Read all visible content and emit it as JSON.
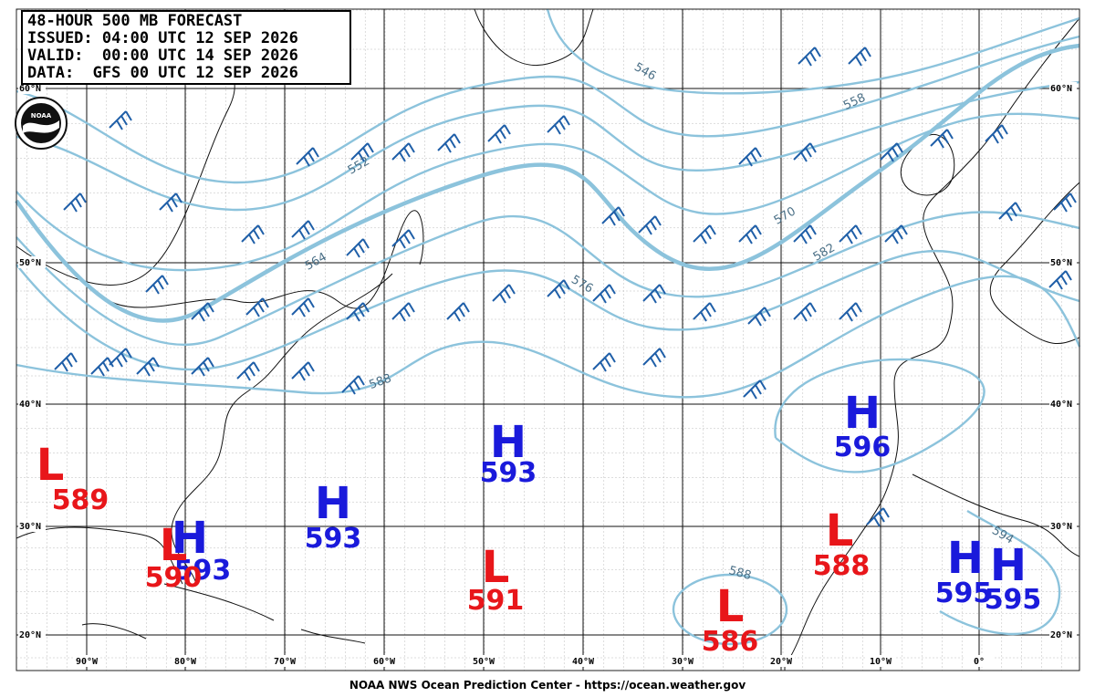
{
  "header": {
    "lines": [
      "48-HOUR 500 MB FORECAST",
      "ISSUED: 04:00 UTC 12 SEP 2026",
      "VALID:  00:00 UTC 14 SEP 2026",
      "DATA:  GFS 00 UTC 12 SEP 2026"
    ]
  },
  "logo": "NOAA",
  "latitude_labels": [
    "60°N",
    "50°N",
    "40°N",
    "30°N",
    "20°N"
  ],
  "longitude_labels": [
    "90°W",
    "80°W",
    "70°W",
    "60°W",
    "50°W",
    "40°W",
    "30°W",
    "20°W",
    "10°W",
    "0°"
  ],
  "contour_labels": [
    "546",
    "558",
    "570",
    "576",
    "564",
    "552",
    "582",
    "588",
    "588",
    "594"
  ],
  "pressure_centers": [
    {
      "symbol": "L",
      "value": "589"
    },
    {
      "symbol": "H",
      "value": "593"
    },
    {
      "symbol": "L",
      "value": "590"
    },
    {
      "symbol": "H",
      "value": "593"
    },
    {
      "symbol": "H",
      "value": "593"
    },
    {
      "symbol": "L",
      "value": "591"
    },
    {
      "symbol": "L",
      "value": "586"
    },
    {
      "symbol": "L",
      "value": "588"
    },
    {
      "symbol": "H",
      "value": "596"
    },
    {
      "symbol": "H",
      "value": "595"
    },
    {
      "symbol": "H",
      "value": "595"
    }
  ],
  "footer": "NOAA NWS Ocean Prediction Center - https://ocean.weather.gov"
}
